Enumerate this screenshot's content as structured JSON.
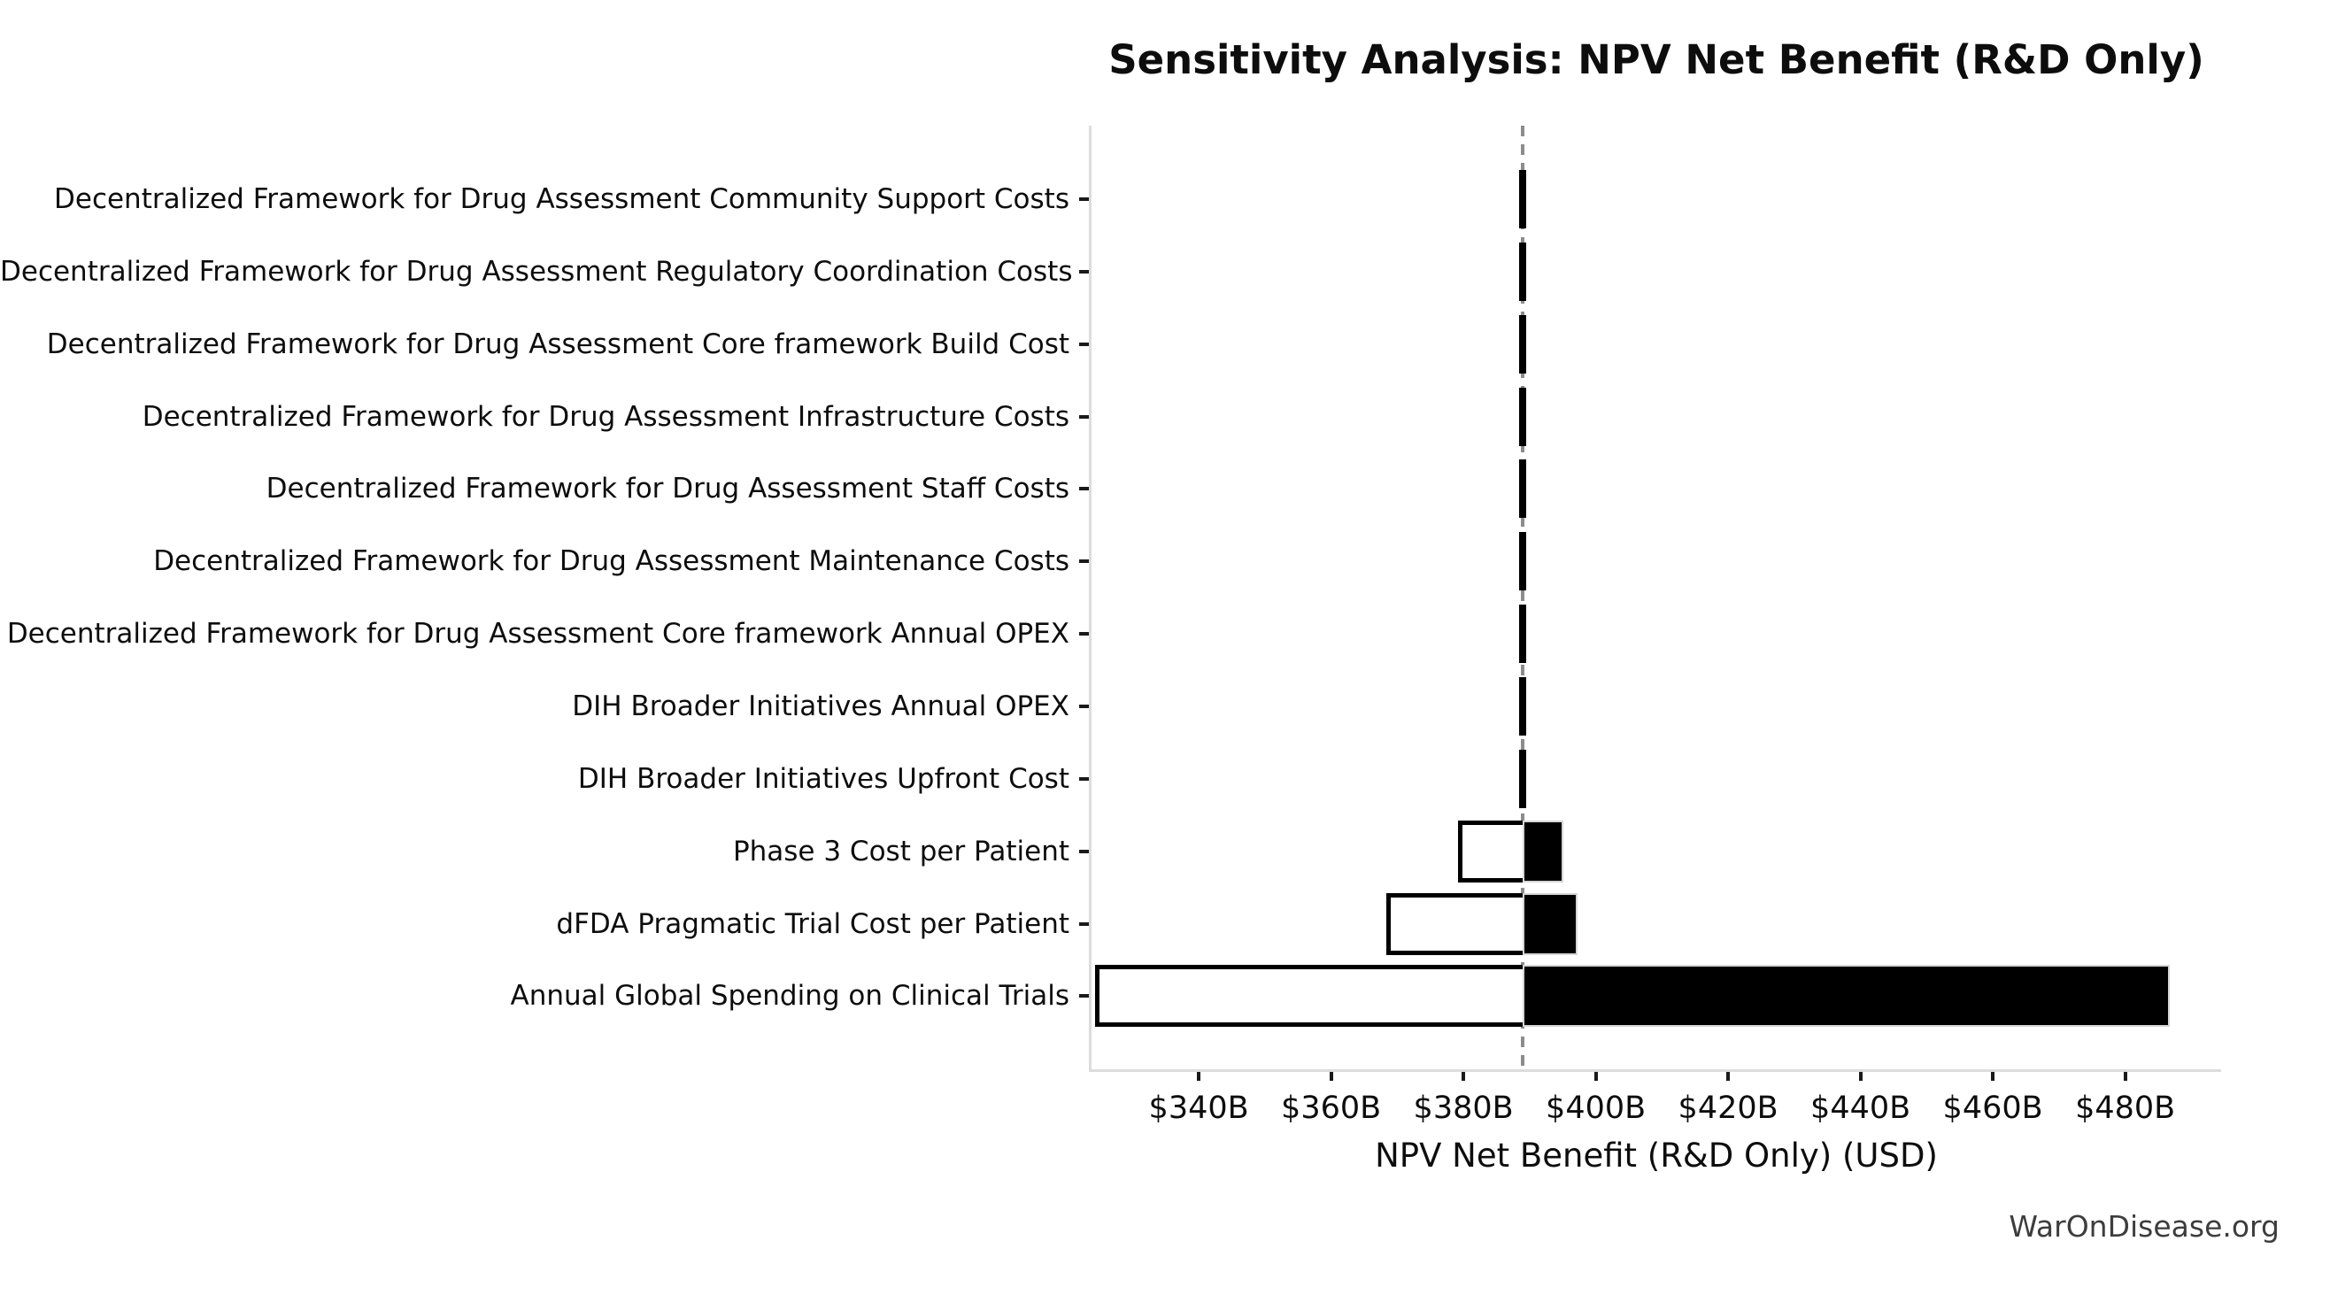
{
  "chart_data": {
    "type": "bar",
    "subtype": "tornado-sensitivity",
    "orientation": "horizontal",
    "title": "Sensitivity Analysis: NPV Net Benefit (R&D Only)",
    "xlabel": "NPV Net Benefit (R&D Only) (USD)",
    "unit": "USD billions",
    "grid": false,
    "legend_position": "none",
    "baseline_billions": 389,
    "xlim_billions": [
      323.8,
      494.5
    ],
    "xticks_billions": [
      340,
      360,
      380,
      400,
      420,
      440,
      460,
      480
    ],
    "xtick_labels": [
      "$340B",
      "$360B",
      "$380B",
      "$400B",
      "$420B",
      "$440B",
      "$460B",
      "$480B"
    ],
    "categories": [
      "Decentralized Framework for Drug Assessment Community Support Costs",
      "Decentralized Framework for Drug Assessment Regulatory Coordination Costs",
      "Decentralized Framework for Drug Assessment Core framework Build Cost",
      "Decentralized Framework for Drug Assessment Infrastructure Costs",
      "Decentralized Framework for Drug Assessment Staff Costs",
      "Decentralized Framework for Drug Assessment Maintenance Costs",
      "Decentralized Framework for Drug Assessment Core framework Annual OPEX",
      "DIH Broader Initiatives Annual OPEX",
      "DIH Broader Initiatives Upfront Cost",
      "Phase 3 Cost per Patient",
      "dFDA Pragmatic Trial Cost per Patient",
      "Annual Global Spending on Clinical Trials"
    ],
    "series": [
      {
        "name": "low_npv_billions",
        "style": "white-fill-black-border",
        "values": [
          388.7,
          388.7,
          388.7,
          388.7,
          388.7,
          388.7,
          388.7,
          388.7,
          388.7,
          379.2,
          368.3,
          324.3
        ]
      },
      {
        "name": "high_npv_billions",
        "style": "black-fill",
        "values": [
          389.3,
          389.3,
          389.3,
          389.3,
          389.3,
          389.3,
          389.3,
          389.3,
          389.3,
          395.1,
          397.2,
          486.7
        ]
      }
    ]
  },
  "watermark": {
    "text": "WarOnDisease.org"
  },
  "colors": {
    "bar_high_fill": "#000000",
    "bar_low_fill": "#ffffff",
    "bar_low_border": "#000000",
    "baseline_dash": "#8c8c8c",
    "axis_spine": "#dcdcdc",
    "tick_mark": "#1a1a1a",
    "text": "#0d0d0d",
    "watermark_text": "#3d3d3d",
    "background": "#ffffff"
  }
}
